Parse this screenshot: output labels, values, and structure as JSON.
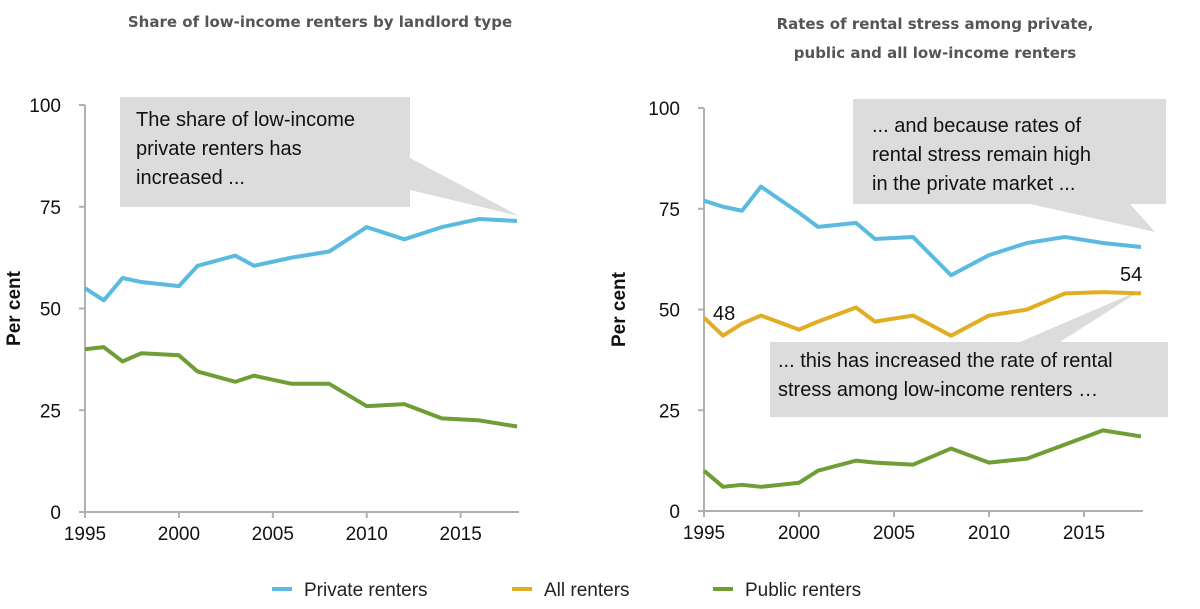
{
  "colors": {
    "private": "#5bbadf",
    "all": "#e2ad22",
    "public": "#6e9e34",
    "callout": "#dcdcdc",
    "axis": "#b0b0b0"
  },
  "legend": [
    {
      "label": "Private renters",
      "color": "#5bbadf"
    },
    {
      "label": "All renters",
      "color": "#e2ad22"
    },
    {
      "label": "Public renters",
      "color": "#6e9e34"
    }
  ],
  "chart_data": [
    {
      "type": "line",
      "title": [
        "Share of low-income renters by landlord type"
      ],
      "ylabel": "Per cent",
      "xlim": [
        1995,
        2018
      ],
      "ylim": [
        0,
        100
      ],
      "xticks": [
        1995,
        2000,
        2005,
        2010,
        2015
      ],
      "yticks": [
        0,
        25,
        50,
        75,
        100
      ],
      "grid": false,
      "annotation": [
        "The share of low-income",
        "private renters has",
        "increased ..."
      ],
      "series": [
        {
          "name": "Private renters",
          "color": "#5bbadf",
          "x": [
            1995,
            1996,
            1997,
            1998,
            2000,
            2001,
            2003,
            2004,
            2006,
            2008,
            2010,
            2012,
            2014,
            2016,
            2018
          ],
          "y": [
            55,
            52,
            57.5,
            56.5,
            55.5,
            60.5,
            63,
            60.5,
            62.5,
            64,
            70,
            67,
            70,
            72,
            71.5
          ]
        },
        {
          "name": "Public renters",
          "color": "#6e9e34",
          "x": [
            1995,
            1996,
            1997,
            1998,
            2000,
            2001,
            2003,
            2004,
            2006,
            2008,
            2010,
            2012,
            2014,
            2016,
            2018
          ],
          "y": [
            40,
            40.5,
            37,
            39,
            38.5,
            34.5,
            32,
            33.5,
            31.5,
            31.5,
            26,
            26.5,
            23,
            22.5,
            21
          ]
        }
      ]
    },
    {
      "type": "line",
      "title": [
        "Rates of rental stress among private,",
        "public and all low-income renters"
      ],
      "ylabel": "Per cent",
      "xlim": [
        1995,
        2018
      ],
      "ylim": [
        0,
        100
      ],
      "xticks": [
        1995,
        2000,
        2005,
        2010,
        2015
      ],
      "yticks": [
        0,
        25,
        50,
        75,
        100
      ],
      "grid": false,
      "annotations": [
        [
          "... and because rates of",
          "rental stress remain high",
          "in the private market ..."
        ],
        [
          "... this has increased the rate of rental",
          "stress among low-income renters …"
        ]
      ],
      "data_labels": [
        "48",
        "54"
      ],
      "series": [
        {
          "name": "Private renters",
          "color": "#5bbadf",
          "x": [
            1995,
            1996,
            1997,
            1998,
            2000,
            2001,
            2003,
            2004,
            2006,
            2008,
            2010,
            2012,
            2014,
            2016,
            2018
          ],
          "y": [
            77,
            75.5,
            74.5,
            80.5,
            74,
            70.5,
            71.5,
            67.5,
            68,
            58.5,
            63.5,
            66.5,
            68,
            66.5,
            65.5
          ]
        },
        {
          "name": "All renters",
          "color": "#e2ad22",
          "x": [
            1995,
            1996,
            1997,
            1998,
            2000,
            2001,
            2003,
            2004,
            2006,
            2008,
            2010,
            2012,
            2014,
            2016,
            2018
          ],
          "y": [
            48,
            43.5,
            46.5,
            48.5,
            45,
            47,
            50.5,
            47,
            48.5,
            43.5,
            48.5,
            50,
            54,
            54.3,
            54
          ]
        },
        {
          "name": "Public renters",
          "color": "#6e9e34",
          "x": [
            1995,
            1996,
            1997,
            1998,
            2000,
            2001,
            2003,
            2004,
            2006,
            2008,
            2010,
            2012,
            2014,
            2016,
            2018
          ],
          "y": [
            10,
            6,
            6.5,
            6,
            7,
            10,
            12.5,
            12,
            11.5,
            15.5,
            12,
            13,
            16.5,
            20,
            18.5
          ]
        }
      ]
    }
  ]
}
